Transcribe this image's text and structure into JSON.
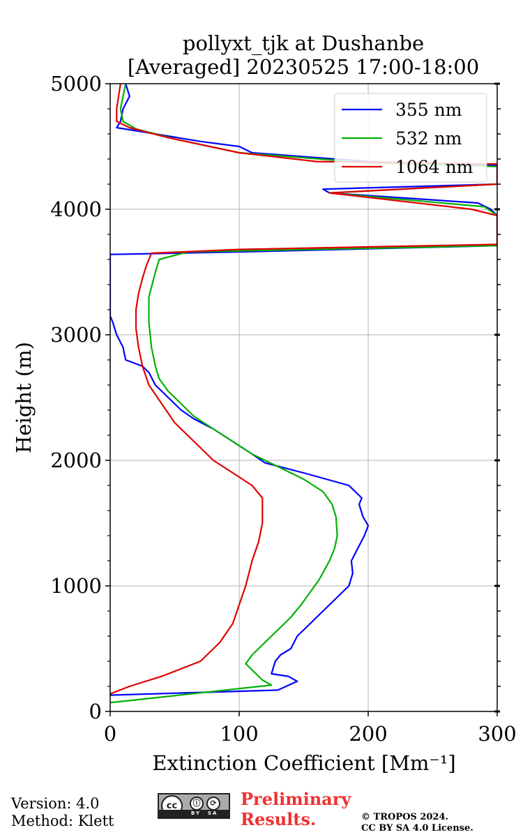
{
  "chart_data": {
    "type": "line",
    "title": [
      "pollyxt_tjk at Dushanbe",
      "[Averaged] 20230525 17:00-18:00"
    ],
    "xlabel": "Extinction Coefficient [Mm⁻¹]",
    "ylabel": "Height (m)",
    "xlim": [
      0,
      300
    ],
    "ylim": [
      0,
      5000
    ],
    "xticks": [
      0,
      100,
      200,
      300
    ],
    "yticks": [
      0,
      1000,
      2000,
      3000,
      4000,
      5000
    ],
    "x_tick_labels": [
      "0",
      "100",
      "200",
      "300"
    ],
    "y_tick_labels": [
      "0",
      "1000",
      "2000",
      "3000",
      "4000",
      "5000"
    ],
    "grid": true,
    "legend_position": "top-right",
    "series": [
      {
        "name": "355 nm",
        "color": "#0000ff",
        "points": [
          [
            0,
            130
          ],
          [
            130,
            170
          ],
          [
            145,
            240
          ],
          [
            138,
            280
          ],
          [
            125,
            300
          ],
          [
            128,
            400
          ],
          [
            132,
            450
          ],
          [
            140,
            500
          ],
          [
            145,
            600
          ],
          [
            155,
            700
          ],
          [
            165,
            800
          ],
          [
            175,
            900
          ],
          [
            185,
            1000
          ],
          [
            188,
            1100
          ],
          [
            187,
            1200
          ],
          [
            192,
            1300
          ],
          [
            197,
            1400
          ],
          [
            200,
            1480
          ],
          [
            196,
            1550
          ],
          [
            193,
            1650
          ],
          [
            195,
            1700
          ],
          [
            185,
            1800
          ],
          [
            150,
            1900
          ],
          [
            120,
            1980
          ],
          [
            110,
            2050
          ],
          [
            95,
            2150
          ],
          [
            80,
            2250
          ],
          [
            65,
            2330
          ],
          [
            55,
            2400
          ],
          [
            45,
            2500
          ],
          [
            35,
            2600
          ],
          [
            30,
            2700
          ],
          [
            25,
            2750
          ],
          [
            12,
            2800
          ],
          [
            10,
            2900
          ],
          [
            5,
            3000
          ],
          [
            2,
            3100
          ],
          [
            0,
            3150
          ],
          [
            0,
            3600
          ],
          [
            0,
            3640
          ],
          [
            100,
            3660
          ],
          [
            300,
            3710
          ],
          [
            300,
            3950
          ],
          [
            295,
            4000
          ],
          [
            285,
            4050
          ],
          [
            170,
            4130
          ],
          [
            165,
            4160
          ],
          [
            300,
            4200
          ],
          [
            300,
            4350
          ],
          [
            200,
            4380
          ],
          [
            110,
            4450
          ],
          [
            100,
            4500
          ],
          [
            70,
            4540
          ],
          [
            35,
            4600
          ],
          [
            5,
            4650
          ],
          [
            8,
            4700
          ],
          [
            10,
            4800
          ],
          [
            15,
            4900
          ],
          [
            12,
            5000
          ]
        ]
      },
      {
        "name": "532 nm",
        "color": "#00b000",
        "points": [
          [
            0,
            70
          ],
          [
            125,
            210
          ],
          [
            118,
            250
          ],
          [
            105,
            380
          ],
          [
            110,
            450
          ],
          [
            120,
            550
          ],
          [
            130,
            650
          ],
          [
            140,
            750
          ],
          [
            148,
            850
          ],
          [
            155,
            950
          ],
          [
            162,
            1050
          ],
          [
            170,
            1200
          ],
          [
            174,
            1300
          ],
          [
            176,
            1400
          ],
          [
            175,
            1550
          ],
          [
            172,
            1650
          ],
          [
            165,
            1750
          ],
          [
            150,
            1850
          ],
          [
            130,
            1950
          ],
          [
            110,
            2050
          ],
          [
            95,
            2150
          ],
          [
            80,
            2250
          ],
          [
            65,
            2350
          ],
          [
            55,
            2450
          ],
          [
            45,
            2550
          ],
          [
            38,
            2650
          ],
          [
            35,
            2750
          ],
          [
            32,
            2900
          ],
          [
            30,
            3100
          ],
          [
            30,
            3300
          ],
          [
            35,
            3500
          ],
          [
            38,
            3600
          ],
          [
            60,
            3660
          ],
          [
            300,
            3710
          ],
          [
            300,
            3950
          ],
          [
            290,
            4020
          ],
          [
            170,
            4130
          ],
          [
            300,
            4200
          ],
          [
            300,
            4340
          ],
          [
            200,
            4370
          ],
          [
            100,
            4450
          ],
          [
            50,
            4560
          ],
          [
            20,
            4640
          ],
          [
            10,
            4700
          ],
          [
            8,
            4800
          ],
          [
            10,
            4900
          ],
          [
            12,
            5000
          ]
        ]
      },
      {
        "name": "1064 nm",
        "color": "#e00000",
        "points": [
          [
            0,
            140
          ],
          [
            15,
            200
          ],
          [
            40,
            280
          ],
          [
            70,
            400
          ],
          [
            85,
            550
          ],
          [
            95,
            700
          ],
          [
            100,
            850
          ],
          [
            105,
            1000
          ],
          [
            110,
            1200
          ],
          [
            115,
            1350
          ],
          [
            118,
            1500
          ],
          [
            118,
            1700
          ],
          [
            110,
            1800
          ],
          [
            95,
            1900
          ],
          [
            80,
            2000
          ],
          [
            70,
            2100
          ],
          [
            60,
            2200
          ],
          [
            50,
            2300
          ],
          [
            40,
            2450
          ],
          [
            30,
            2600
          ],
          [
            25,
            2750
          ],
          [
            22,
            2900
          ],
          [
            20,
            3050
          ],
          [
            20,
            3200
          ],
          [
            22,
            3330
          ],
          [
            25,
            3450
          ],
          [
            28,
            3550
          ],
          [
            32,
            3650
          ],
          [
            100,
            3680
          ],
          [
            300,
            3720
          ],
          [
            300,
            3950
          ],
          [
            280,
            4000
          ],
          [
            170,
            4130
          ],
          [
            300,
            4200
          ],
          [
            300,
            4360
          ],
          [
            160,
            4380
          ],
          [
            100,
            4450
          ],
          [
            45,
            4570
          ],
          [
            15,
            4650
          ],
          [
            5,
            4700
          ],
          [
            5,
            4800
          ],
          [
            8,
            5000
          ]
        ]
      }
    ]
  },
  "footer": {
    "version": "Version: 4.0",
    "method": "Method: Klett",
    "license_badge": {
      "cc": "cc",
      "by": "BY",
      "sa": "SA"
    },
    "prelim_line1": "Preliminary",
    "prelim_line2": "Results.",
    "copyright_line1": "© TROPOS 2024.",
    "copyright_line2": "CC BY SA 4.0 License."
  }
}
